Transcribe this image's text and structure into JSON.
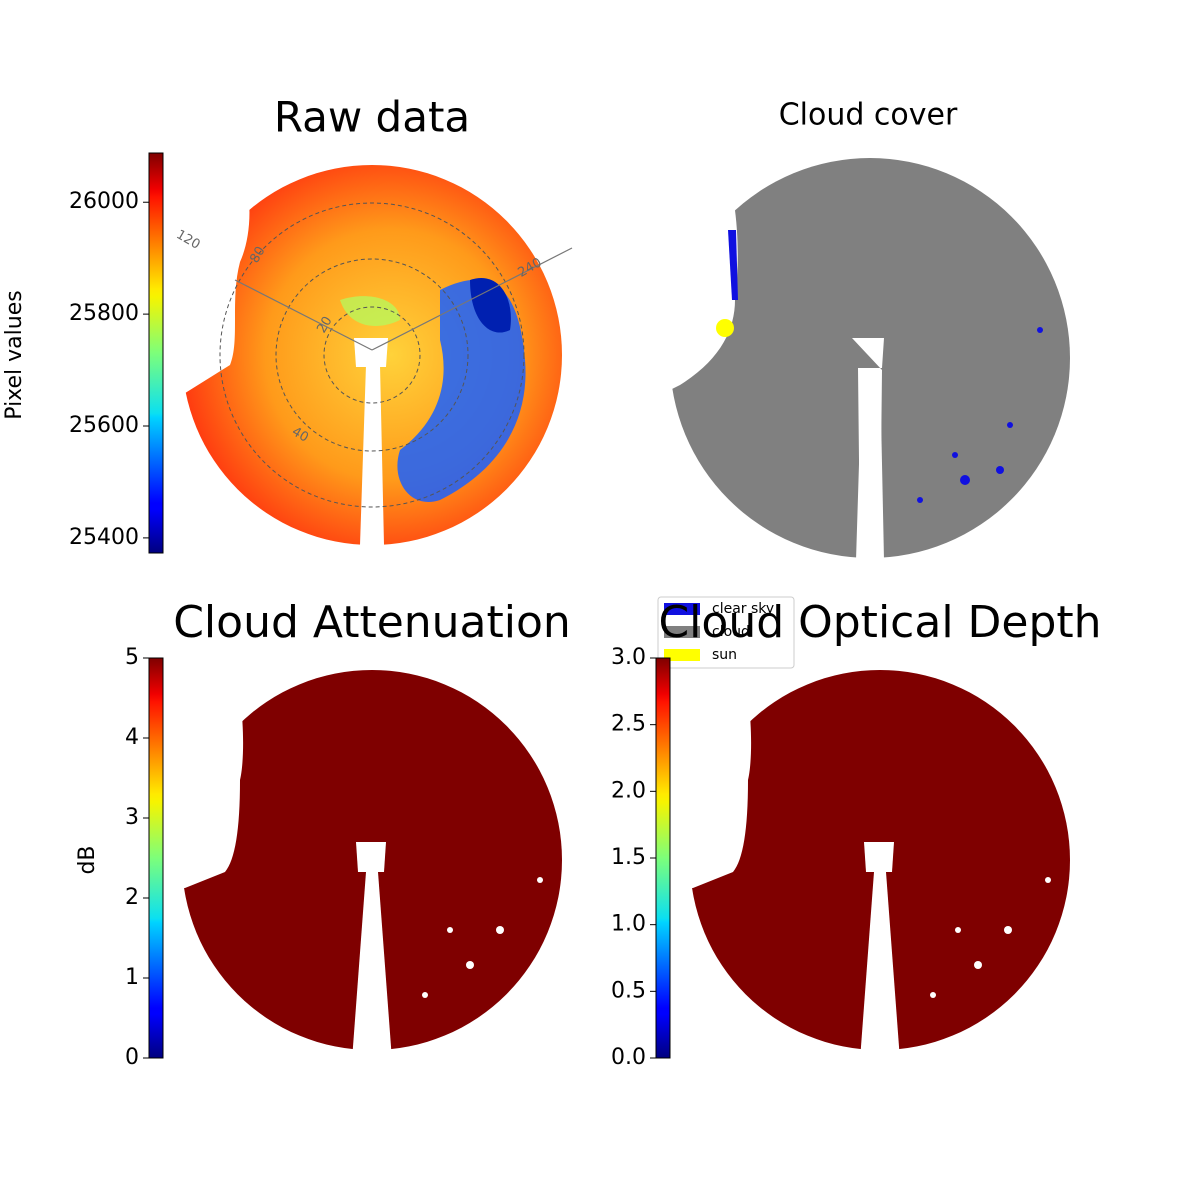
{
  "chart_data": [
    {
      "type": "image",
      "title": "Raw data",
      "annotations": [
        "120",
        "80",
        "20",
        "40",
        "240"
      ],
      "colorbar": {
        "label": "Pixel values",
        "colormap": "jet",
        "clim": [
          25373,
          26088
        ],
        "ticks": [
          25400,
          25600,
          25800,
          26000
        ]
      }
    },
    {
      "type": "image",
      "title": "Cloud cover",
      "series": [
        {
          "name": "clear sky",
          "color": "#1010e0"
        },
        {
          "name": "cloud",
          "color": "#808080"
        },
        {
          "name": "sun",
          "color": "#ffff00"
        }
      ],
      "legend": "lower left"
    },
    {
      "type": "image",
      "title": "Cloud Attenuation",
      "colorbar": {
        "label": "dB",
        "colormap": "jet",
        "clim": [
          0,
          5
        ],
        "ticks": [
          0,
          1,
          2,
          3,
          4,
          5
        ]
      }
    },
    {
      "type": "image",
      "title": "Cloud Optical Depth",
      "colorbar": {
        "colormap": "jet",
        "clim": [
          0,
          3
        ],
        "ticks": [
          {
            "value": 0,
            "label": "0.0"
          },
          0.5,
          {
            "value": 1,
            "label": "1.0"
          },
          1.5,
          {
            "value": 2,
            "label": "2.0"
          },
          2.5,
          {
            "value": 3,
            "label": "3.0"
          }
        ]
      }
    }
  ]
}
